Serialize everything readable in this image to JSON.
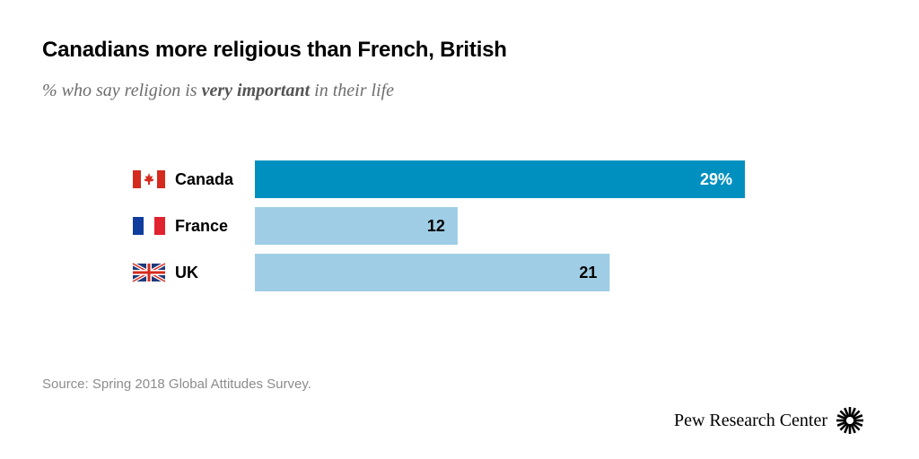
{
  "title": "Canadians more religious than French, British",
  "subtitle": {
    "prefix": "% who say religion is ",
    "emphasis": "very important",
    "suffix": " in their life"
  },
  "chart_data": {
    "type": "bar",
    "orientation": "horizontal",
    "categories": [
      "Canada",
      "France",
      "UK"
    ],
    "values": [
      29,
      12,
      21
    ],
    "value_labels": [
      "29%",
      "12",
      "21"
    ],
    "flags": [
      "canada-flag-icon",
      "france-flag-icon",
      "uk-flag-icon"
    ],
    "title": "Canadians more religious than French, British",
    "unit": "%",
    "xlim": [
      0,
      29
    ],
    "colors": {
      "highlight": "#0090c0",
      "default": "#9fcde6",
      "highlight_label": "#ffffff",
      "default_label": "#000000"
    },
    "highlight_index": 0
  },
  "source": "Source: Spring 2018 Global Attitudes Survey.",
  "brand": {
    "name": "Pew Research Center",
    "logo_icon": "pew-sunburst-icon"
  }
}
